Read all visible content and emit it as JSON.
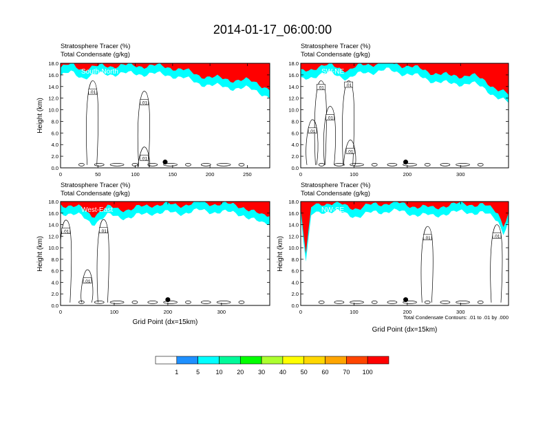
{
  "title": "2014-01-17_06:00:00",
  "colors": {
    "levels": [
      "#ffffff",
      "#1e90ff",
      "#00ffff",
      "#00fa9a",
      "#00ff00",
      "#adff2f",
      "#ffff00",
      "#ffd700",
      "#ffa500",
      "#ff4500",
      "#ff0000"
    ],
    "contour": "#000000",
    "marker": "#000000"
  },
  "colorbar": {
    "labels": [
      "1",
      "5",
      "10",
      "20",
      "30",
      "40",
      "50",
      "60",
      "70",
      "100"
    ]
  },
  "chart_data": [
    {
      "type": "heatmap",
      "subtitle1": "Stratosphere Tracer   (%)",
      "subtitle2": "Total Condensate   (g/kg)",
      "section_label": "South-North",
      "ylabel": "Height (km)",
      "xlabel": "",
      "xlim": [
        0,
        280
      ],
      "ylim": [
        0,
        18
      ],
      "xticks": [
        "0",
        "50",
        "100",
        "150",
        "200",
        "250"
      ],
      "yticks": [
        "0.0",
        "2.0",
        "4.0",
        "6.0",
        "8.0",
        "10.0",
        "12.0",
        "14.0",
        "16.0",
        "18.0"
      ],
      "tropopause_km": [
        [
          0,
          15.2
        ],
        [
          15,
          15.8
        ],
        [
          30,
          15.0
        ],
        [
          45,
          15.3
        ],
        [
          60,
          15.6
        ],
        [
          90,
          15.6
        ],
        [
          120,
          15.6
        ],
        [
          150,
          15.3
        ],
        [
          165,
          14.8
        ],
        [
          185,
          14.0
        ],
        [
          205,
          13.5
        ],
        [
          230,
          13.2
        ],
        [
          250,
          13.0
        ],
        [
          265,
          12.6
        ],
        [
          280,
          11.5
        ]
      ],
      "marker": {
        "x": 140,
        "y": 1.0
      },
      "contour_labels": [
        {
          "text": ".01",
          "x": 43,
          "y": 13.0
        },
        {
          "text": ".01",
          "x": 112,
          "y": 11.2
        },
        {
          "text": ".01",
          "x": 112,
          "y": 1.6
        }
      ]
    },
    {
      "type": "heatmap",
      "subtitle1": "Stratosphere Tracer   (%)",
      "subtitle2": "Total Condensate   (g/kg)",
      "section_label": "SW-NE",
      "ylabel": "",
      "xlabel": "",
      "xlim": [
        0,
        390
      ],
      "ylim": [
        0,
        18
      ],
      "xticks": [
        "0",
        "100",
        "200",
        "300"
      ],
      "yticks": [
        "0.0",
        "2.0",
        "4.0",
        "6.0",
        "8.0",
        "10.0",
        "12.0",
        "14.0",
        "16.0",
        "18.0"
      ],
      "tropopause_km": [
        [
          0,
          14.5
        ],
        [
          30,
          15.4
        ],
        [
          60,
          15.6
        ],
        [
          90,
          14.8
        ],
        [
          120,
          15.8
        ],
        [
          160,
          16.2
        ],
        [
          200,
          15.6
        ],
        [
          240,
          14.6
        ],
        [
          280,
          13.8
        ],
        [
          320,
          14.0
        ],
        [
          350,
          12.8
        ],
        [
          370,
          11.5
        ],
        [
          390,
          10.5
        ]
      ],
      "marker": {
        "x": 197,
        "y": 1.0
      },
      "contour_labels": [
        {
          "text": ".01",
          "x": 38,
          "y": 13.8
        },
        {
          "text": ".01",
          "x": 90,
          "y": 14.2
        },
        {
          "text": ".01",
          "x": 55,
          "y": 8.6
        },
        {
          "text": ".01",
          "x": 22,
          "y": 6.3
        },
        {
          "text": ".01",
          "x": 93,
          "y": 2.8
        }
      ]
    },
    {
      "type": "heatmap",
      "subtitle1": "Stratosphere Tracer   (%)",
      "subtitle2": "Total Condensate   (g/kg)",
      "section_label": "West-East",
      "ylabel": "Height (km)",
      "xlabel": "Grid Point (dx=15km)",
      "xlim": [
        0,
        390
      ],
      "ylim": [
        0,
        18
      ],
      "xticks": [
        "0",
        "100",
        "200",
        "300"
      ],
      "yticks": [
        "0.0",
        "2.0",
        "4.0",
        "6.0",
        "8.0",
        "10.0",
        "12.0",
        "14.0",
        "16.0",
        "18.0"
      ],
      "tropopause_km": [
        [
          0,
          15.6
        ],
        [
          40,
          14.8
        ],
        [
          60,
          13.6
        ],
        [
          90,
          15.0
        ],
        [
          130,
          14.6
        ],
        [
          170,
          15.5
        ],
        [
          220,
          15.4
        ],
        [
          260,
          15.8
        ],
        [
          300,
          15.6
        ],
        [
          340,
          15.2
        ],
        [
          360,
          14.2
        ],
        [
          375,
          13.5
        ],
        [
          390,
          13.8
        ]
      ],
      "marker": {
        "x": 200,
        "y": 1.0
      },
      "contour_labels": [
        {
          "text": ".01",
          "x": 10,
          "y": 12.8
        },
        {
          "text": ".01",
          "x": 80,
          "y": 12.9
        },
        {
          "text": ".01",
          "x": 50,
          "y": 4.2
        }
      ]
    },
    {
      "type": "heatmap",
      "subtitle1": "Stratosphere Tracer   (%)",
      "subtitle2": "Total Condensate   (g/kg)",
      "section_label": "NW-SE",
      "ylabel": "Height (km)",
      "xlabel": "Grid Point (dx=15km)",
      "footnote": "Total Condensate Contours: .01 to .01 by .000",
      "xlim": [
        0,
        390
      ],
      "ylim": [
        0,
        18
      ],
      "xticks": [
        "0",
        "100",
        "200",
        "300"
      ],
      "yticks": [
        "0.0",
        "2.0",
        "4.0",
        "6.0",
        "8.0",
        "10.0",
        "12.0",
        "14.0",
        "16.0",
        "18.0"
      ],
      "tropopause_km": [
        [
          0,
          15.0
        ],
        [
          10,
          6.5
        ],
        [
          20,
          15.2
        ],
        [
          40,
          15.8
        ],
        [
          80,
          15.4
        ],
        [
          110,
          14.8
        ],
        [
          140,
          15.6
        ],
        [
          170,
          15.8
        ],
        [
          210,
          15.3
        ],
        [
          250,
          14.8
        ],
        [
          270,
          15.4
        ],
        [
          310,
          15.6
        ],
        [
          340,
          15.5
        ],
        [
          370,
          14.2
        ],
        [
          380,
          12.0
        ],
        [
          390,
          14.0
        ]
      ],
      "marker": {
        "x": 197,
        "y": 1.0
      },
      "contour_labels": [
        {
          "text": ".01",
          "x": 238,
          "y": 11.7
        },
        {
          "text": ".01",
          "x": 368,
          "y": 12.0
        }
      ]
    }
  ]
}
